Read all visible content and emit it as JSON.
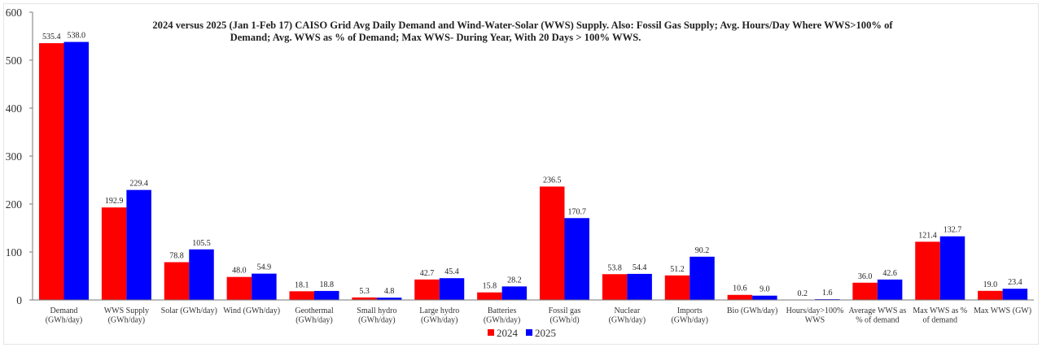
{
  "chart_data": {
    "type": "bar",
    "title_line1": "2024 versus 2025 (Jan 1-Feb 17) CAISO Grid Avg Daily Demand and Wind-Water-Solar (WWS) Supply. Also: Fossil Gas Supply; Avg. Hours/Day Where WWS>100% of",
    "title_line2": "Demand; Avg. WWS as % of Demand; Max WWS- During Year, With 20 Days > 100% WWS.",
    "categories": [
      [
        "Demand",
        "(GWh/day)"
      ],
      [
        "WWS Supply",
        "(GWh/day)"
      ],
      [
        "Solar (GWh/day)"
      ],
      [
        "Wind (GWh/day)"
      ],
      [
        "Geothermal",
        "(GWh/day)"
      ],
      [
        "Small hydro",
        "(GWh/day)"
      ],
      [
        "Large hydro",
        "(GWh/day)"
      ],
      [
        "Batteries",
        "(GWh/day)"
      ],
      [
        "Fossil gas",
        "(GWh/d)"
      ],
      [
        "Nuclear",
        "(GWh/day)"
      ],
      [
        "Imports",
        "(GWh/day)"
      ],
      [
        "Bio (GWh/day)"
      ],
      [
        "Hours/day>100%",
        "WWS"
      ],
      [
        "Average WWS as",
        "% of demand"
      ],
      [
        "Max WWS as %",
        "of demand"
      ],
      [
        "Max WWS (GW)"
      ]
    ],
    "series": [
      {
        "name": "2024",
        "color": "#ff0000",
        "values": [
          535.4,
          192.9,
          78.8,
          48.0,
          18.1,
          5.3,
          42.7,
          15.8,
          236.5,
          53.8,
          51.2,
          10.6,
          0.2,
          36.0,
          121.4,
          19.0
        ]
      },
      {
        "name": "2025",
        "color": "#0000ff",
        "values": [
          538.0,
          229.4,
          105.5,
          54.9,
          18.8,
          4.8,
          45.4,
          28.2,
          170.7,
          54.4,
          90.2,
          9.0,
          1.6,
          42.6,
          132.7,
          23.4
        ]
      }
    ],
    "ylim": [
      0,
      600
    ],
    "yticks": [
      0,
      100,
      200,
      300,
      400,
      500,
      600
    ],
    "grid": false,
    "legend": "bottom-center",
    "data_label_decimals": 1
  }
}
